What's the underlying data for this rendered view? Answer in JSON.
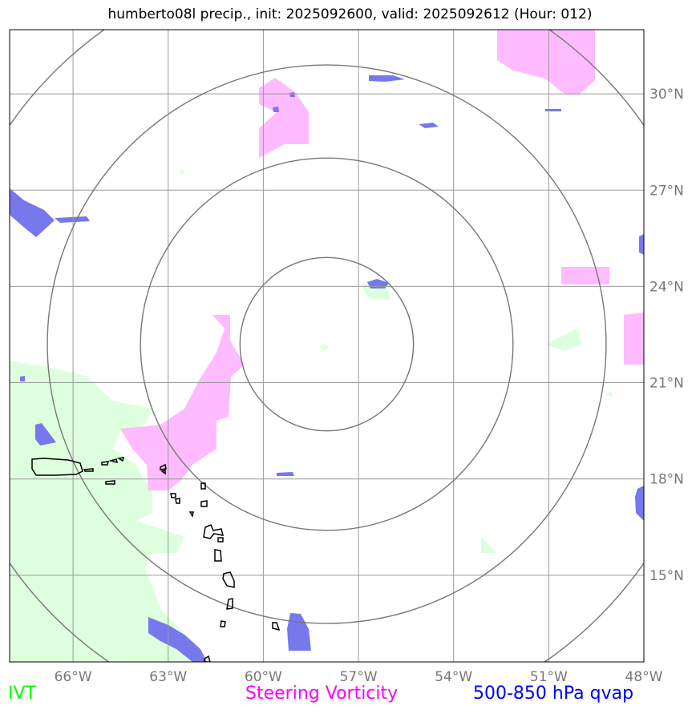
{
  "title": "humberto08l precip., init: 2025092600, valid: 2025092612 (Hour: 012)",
  "legend": {
    "ivt": "IVT",
    "steering_vorticity": "Steering Vorticity",
    "qvap": "500-850 hPa qvap"
  },
  "colors": {
    "ivt": "#00ff00",
    "steering_vorticity": "#ff00ff",
    "qvap": "#0000ff",
    "ivt_fill": "#ddffdd",
    "vort_fill": "#ffbbff",
    "qvap_fill": "#7777ee",
    "grid": "#999999",
    "rings": "#777777"
  },
  "map": {
    "lon_labels": [
      "66°W",
      "63°W",
      "60°W",
      "57°W",
      "54°W",
      "51°W",
      "48°W"
    ],
    "lat_labels": [
      "30°N",
      "27°N",
      "24°N",
      "21°N",
      "18°N",
      "15°N"
    ],
    "lon_values": [
      -66,
      -63,
      -60,
      -57,
      -54,
      -51,
      -48
    ],
    "lat_values": [
      30,
      27,
      24,
      21,
      18,
      15
    ],
    "extent": {
      "lon_min": -68,
      "lon_max": -48,
      "lat_min": 12.3,
      "lat_max": 32.0
    },
    "storm_center": {
      "lon": -58,
      "lat": 22.2
    },
    "range_rings_deg": [
      2.7,
      5.8,
      8.7,
      12.0
    ]
  }
}
